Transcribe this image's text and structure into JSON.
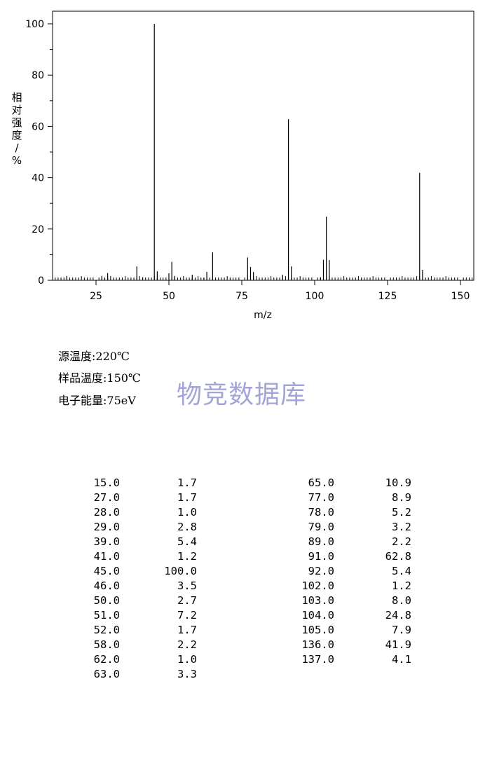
{
  "chart_data": {
    "type": "bar",
    "xlabel": "m/z",
    "ylabel": "相对强度/%",
    "xlim": [
      10,
      155
    ],
    "ylim": [
      0,
      105
    ],
    "x_ticks": [
      25,
      50,
      75,
      100,
      125,
      150
    ],
    "y_ticks": [
      0,
      20,
      40,
      60,
      80,
      100
    ],
    "grid": false,
    "x": [
      15,
      27,
      28,
      29,
      39,
      41,
      45,
      46,
      50,
      51,
      52,
      58,
      62,
      63,
      65,
      77,
      78,
      79,
      89,
      91,
      92,
      102,
      103,
      104,
      105,
      136,
      137
    ],
    "values": [
      1.7,
      1.7,
      1.0,
      2.8,
      5.4,
      1.2,
      100.0,
      3.5,
      2.7,
      7.2,
      1.7,
      2.2,
      1.0,
      3.3,
      10.9,
      8.9,
      5.2,
      3.2,
      2.2,
      62.8,
      5.4,
      1.2,
      8.0,
      24.8,
      7.9,
      41.9,
      4.1
    ]
  },
  "conditions": {
    "source_temp": "源温度:220℃",
    "sample_temp": "样品温度:150℃",
    "electron_energy": "电子能量:75eV"
  },
  "watermark": "物竞数据库",
  "peak_table": {
    "left": [
      {
        "mz": "15.0",
        "abundance": "1.7"
      },
      {
        "mz": "27.0",
        "abundance": "1.7"
      },
      {
        "mz": "28.0",
        "abundance": "1.0"
      },
      {
        "mz": "29.0",
        "abundance": "2.8"
      },
      {
        "mz": "39.0",
        "abundance": "5.4"
      },
      {
        "mz": "41.0",
        "abundance": "1.2"
      },
      {
        "mz": "45.0",
        "abundance": "100.0"
      },
      {
        "mz": "46.0",
        "abundance": "3.5"
      },
      {
        "mz": "50.0",
        "abundance": "2.7"
      },
      {
        "mz": "51.0",
        "abundance": "7.2"
      },
      {
        "mz": "52.0",
        "abundance": "1.7"
      },
      {
        "mz": "58.0",
        "abundance": "2.2"
      },
      {
        "mz": "62.0",
        "abundance": "1.0"
      },
      {
        "mz": "63.0",
        "abundance": "3.3"
      }
    ],
    "right": [
      {
        "mz": "65.0",
        "abundance": "10.9"
      },
      {
        "mz": "77.0",
        "abundance": "8.9"
      },
      {
        "mz": "78.0",
        "abundance": "5.2"
      },
      {
        "mz": "79.0",
        "abundance": "3.2"
      },
      {
        "mz": "89.0",
        "abundance": "2.2"
      },
      {
        "mz": "91.0",
        "abundance": "62.8"
      },
      {
        "mz": "92.0",
        "abundance": "5.4"
      },
      {
        "mz": "102.0",
        "abundance": "1.2"
      },
      {
        "mz": "103.0",
        "abundance": "8.0"
      },
      {
        "mz": "104.0",
        "abundance": "24.8"
      },
      {
        "mz": "105.0",
        "abundance": "7.9"
      },
      {
        "mz": "136.0",
        "abundance": "41.9"
      },
      {
        "mz": "137.0",
        "abundance": "4.1"
      }
    ]
  }
}
